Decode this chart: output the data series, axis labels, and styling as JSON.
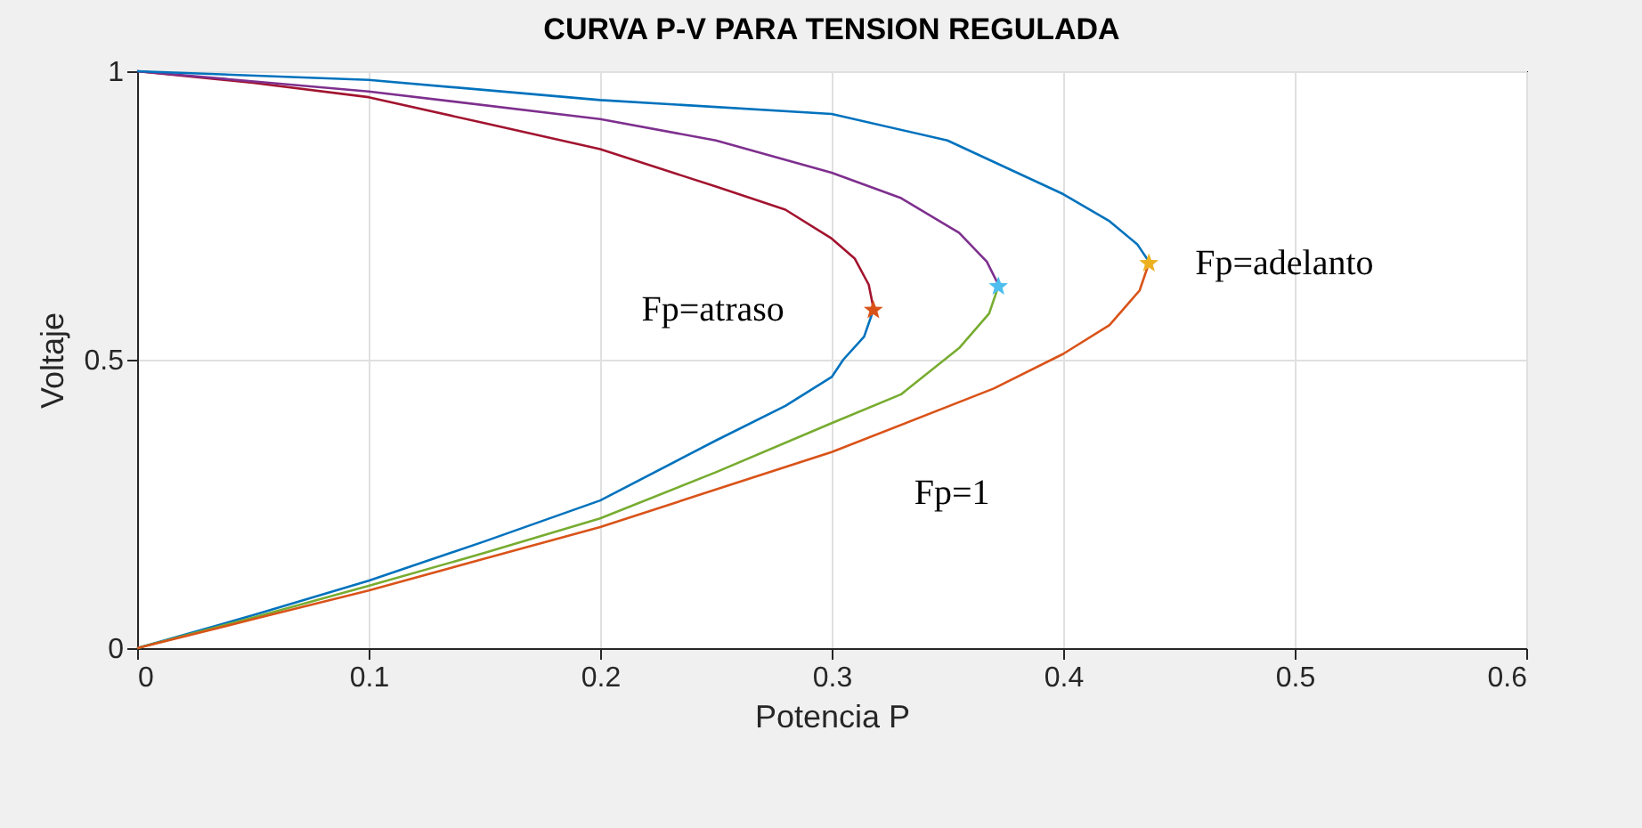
{
  "chart_data": {
    "type": "line",
    "title": "CURVA P-V PARA TENSION REGULADA",
    "xlabel": "Potencia P",
    "ylabel": "Voltaje",
    "xlim": [
      0,
      0.6
    ],
    "ylim": [
      0,
      1
    ],
    "xticks": [
      0,
      0.1,
      0.2,
      0.3,
      0.4,
      0.5,
      0.6
    ],
    "yticks": [
      0,
      0.5,
      1
    ],
    "grid": true,
    "series": [
      {
        "color": "#a2142f",
        "x": [
          0,
          0.05,
          0.1,
          0.15,
          0.2,
          0.25,
          0.28,
          0.3,
          0.31,
          0.316,
          0.318
        ],
        "values": [
          1,
          0.98,
          0.955,
          0.91,
          0.865,
          0.8,
          0.76,
          0.71,
          0.675,
          0.63,
          0.59
        ]
      },
      {
        "color": "#0072bd",
        "x": [
          0.318,
          0.314,
          0.305,
          0.3,
          0.28,
          0.25,
          0.2,
          0.15,
          0.1,
          0.05,
          0
        ],
        "values": [
          0.586,
          0.54,
          0.5,
          0.47,
          0.42,
          0.36,
          0.256,
          0.185,
          0.117,
          0.057,
          0
        ]
      },
      {
        "color": "#7e2f8e",
        "x": [
          0,
          0.1,
          0.2,
          0.25,
          0.3,
          0.33,
          0.355,
          0.367,
          0.372
        ],
        "values": [
          1,
          0.965,
          0.917,
          0.88,
          0.824,
          0.78,
          0.72,
          0.67,
          0.63
        ]
      },
      {
        "color": "#77ac30",
        "x": [
          0.372,
          0.368,
          0.355,
          0.33,
          0.3,
          0.25,
          0.2,
          0.15,
          0.1,
          0.05,
          0
        ],
        "values": [
          0.627,
          0.58,
          0.52,
          0.44,
          0.39,
          0.305,
          0.225,
          0.165,
          0.108,
          0.053,
          0
        ]
      },
      {
        "color": "#0072bd",
        "x": [
          0,
          0.1,
          0.2,
          0.3,
          0.35,
          0.4,
          0.42,
          0.432,
          0.437
        ],
        "values": [
          1,
          0.985,
          0.95,
          0.926,
          0.88,
          0.787,
          0.74,
          0.7,
          0.67
        ]
      },
      {
        "color": "#d95319",
        "x": [
          0.437,
          0.433,
          0.42,
          0.4,
          0.37,
          0.3,
          0.25,
          0.2,
          0.15,
          0.1,
          0.05,
          0
        ],
        "values": [
          0.667,
          0.62,
          0.56,
          0.51,
          0.45,
          0.34,
          0.275,
          0.21,
          0.155,
          0.1,
          0.05,
          0
        ]
      },
      {
        "type": "scatter",
        "marker": "star",
        "x": [
          0.318,
          0.372,
          0.437
        ],
        "values": [
          0.586,
          0.627,
          0.667
        ],
        "colors": [
          "#d95319",
          "#4dbeee",
          "#edb120"
        ]
      }
    ],
    "annotations": [
      "Fp=atraso",
      "Fp=1",
      "Fp=adelanto"
    ]
  }
}
